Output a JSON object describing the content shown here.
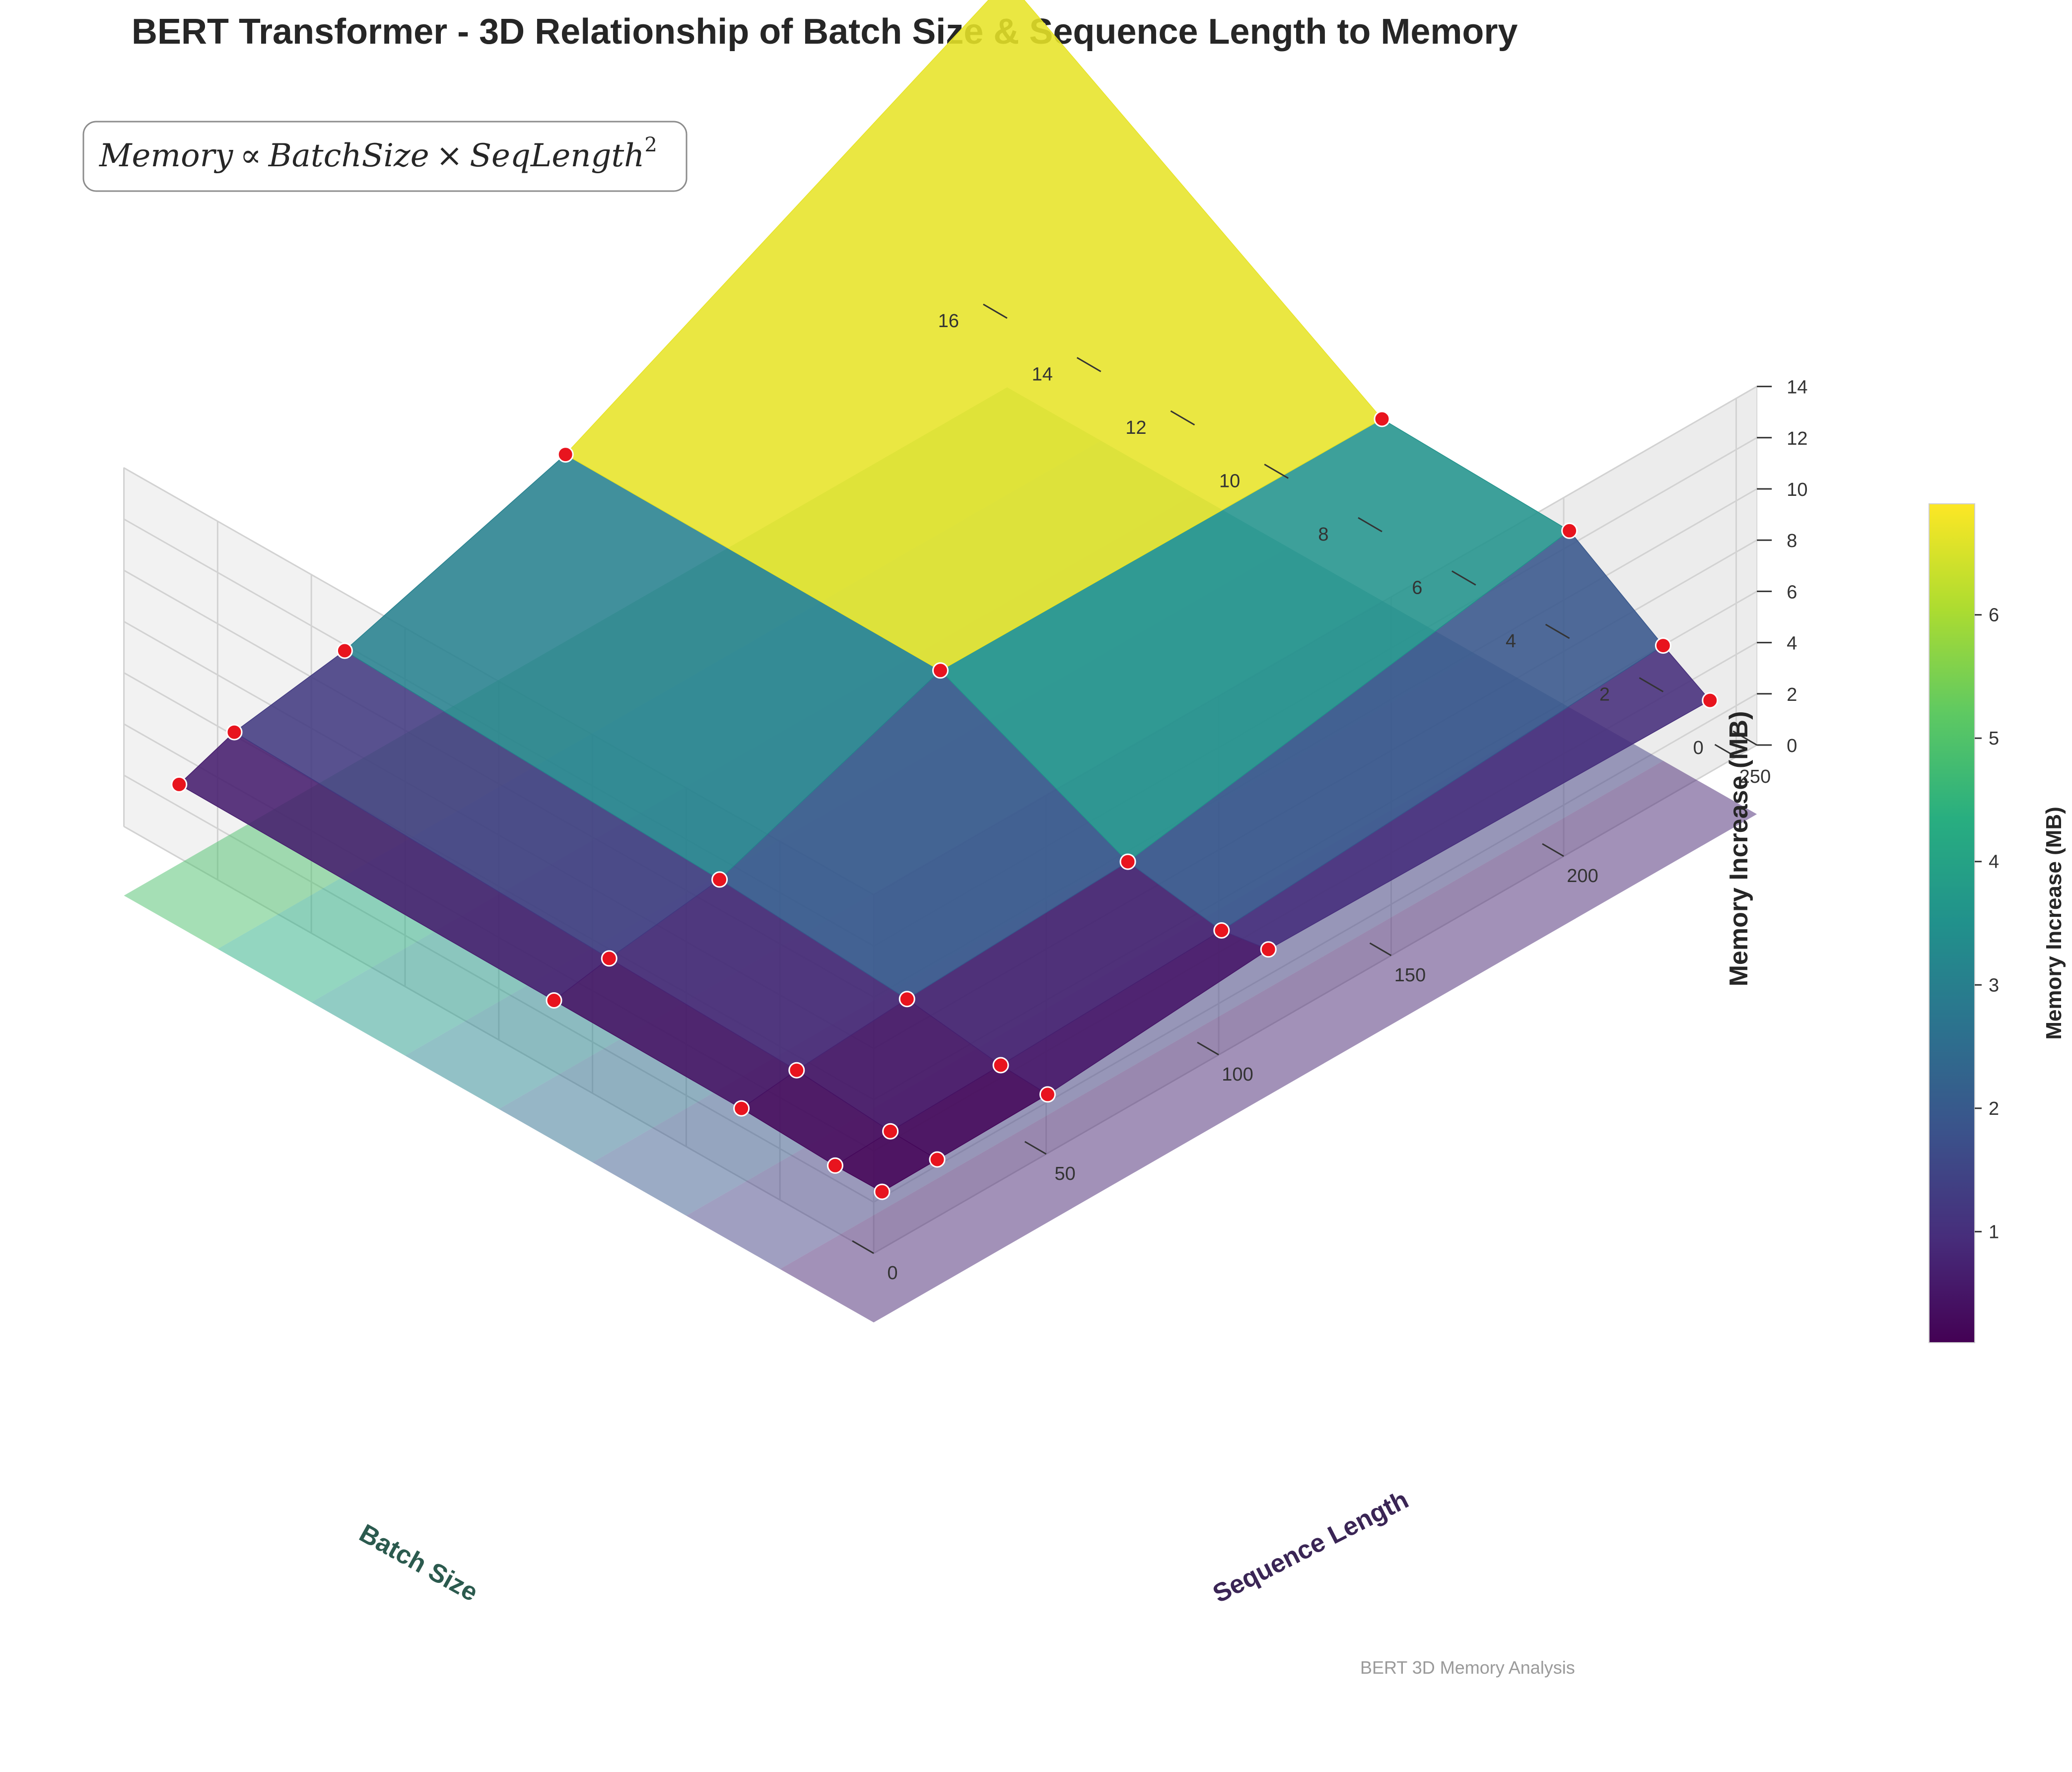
{
  "chart_data": {
    "type": "surface3d",
    "title": "BERT Transformer - 3D Relationship of Batch Size & Sequence Length to Memory",
    "formula": {
      "lhs": "Memory",
      "rel": "∝",
      "t1": "BatchSize",
      "op": "×",
      "t2": "SeqLength",
      "exp": "2"
    },
    "xlabel": "Batch Size",
    "ylabel": "Sequence Length",
    "zlabel": "Memory Increase (MB)",
    "colorbar_label": "Memory Increase (MB)",
    "annotation": "BERT 3D Memory Analysis",
    "xlim": [
      0,
      16
    ],
    "ylim": [
      0,
      256
    ],
    "zlim": [
      0,
      14
    ],
    "x_ticks": [
      0,
      2,
      4,
      6,
      8,
      10,
      12,
      14,
      16
    ],
    "y_ticks": [
      0,
      50,
      100,
      150,
      200,
      250
    ],
    "z_ticks": [
      0,
      2,
      4,
      6,
      8,
      10,
      12,
      14
    ],
    "colorbar_ticks": [
      1,
      2,
      3,
      4,
      5,
      6
    ],
    "colorbar_range": [
      0.1,
      6.9
    ],
    "colormap": "viridis",
    "grid": true,
    "batch_sizes": [
      1,
      2,
      4,
      8,
      16
    ],
    "sequence_lengths": [
      16,
      32,
      64,
      128,
      256
    ],
    "memory_mb": [
      [
        0.12,
        0.14,
        0.2,
        0.9,
        0.7
      ],
      [
        0.1,
        0.2,
        0.3,
        0.6,
        1.8
      ],
      [
        0.25,
        0.5,
        0.8,
        1.2,
        4.2
      ],
      [
        0.3,
        0.7,
        1.3,
        4.5,
        4.4
      ],
      [
        0.4,
        1.2,
        1.9,
        4.6,
        13.2
      ]
    ]
  }
}
